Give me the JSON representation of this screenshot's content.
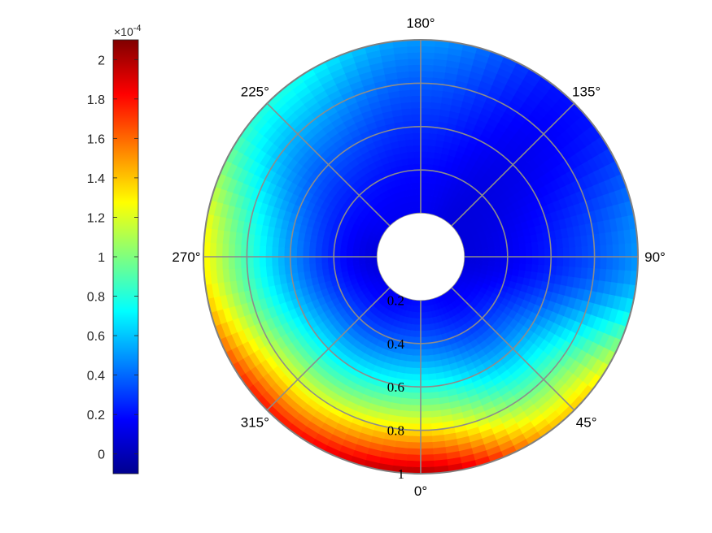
{
  "chart_data": {
    "type": "heatmap",
    "projection": "polar",
    "colormap": "jet",
    "angle_direction": "counterclockwise",
    "zero_angle_location": "bottom",
    "angular_tick_labels": [
      "0°",
      "45°",
      "90°",
      "135°",
      "180°",
      "225°",
      "270°",
      "315°"
    ],
    "angular_ticks_deg": [
      0,
      45,
      90,
      135,
      180,
      225,
      270,
      315
    ],
    "radial_tick_labels": [
      "0.2",
      "0.4",
      "0.6",
      "0.8",
      "1"
    ],
    "radial_ticks": [
      0.2,
      0.4,
      0.6,
      0.8,
      1.0
    ],
    "rlim": [
      0,
      1
    ],
    "inner_radius": 0.2,
    "grid": true,
    "colorbar": {
      "location": "left",
      "clim": [
        -0.1,
        2.1
      ],
      "tick_labels": [
        "0",
        "0.2",
        "0.4",
        "0.6",
        "0.8",
        "1",
        "1.2",
        "1.4",
        "1.6",
        "1.8",
        "2"
      ],
      "ticks": [
        0,
        0.2,
        0.4,
        0.6,
        0.8,
        1.0,
        1.2,
        1.4,
        1.6,
        1.8,
        2.0
      ],
      "exponent_label": "×10",
      "exponent_power": "-4"
    },
    "field_profile": {
      "angles_deg": [
        0,
        45,
        90,
        135,
        180,
        225,
        270,
        315,
        360
      ],
      "values_at_outer_radius": [
        2.0,
        1.4,
        0.5,
        0.2,
        0.5,
        0.8,
        1.3,
        1.8,
        2.0
      ],
      "values_at_inner_radius": [
        0.2,
        0.15,
        0.1,
        0.1,
        0.15,
        0.15,
        0.1,
        0.15,
        0.2
      ]
    }
  }
}
